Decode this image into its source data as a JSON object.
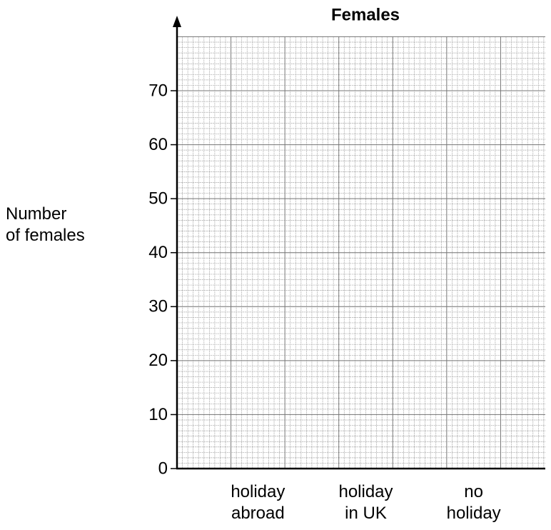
{
  "chart_data": {
    "type": "bar",
    "title": "Females",
    "y_label": "Number\nof females",
    "categories": [
      "holiday\nabroad",
      "holiday\nin UK",
      "no\nholiday"
    ],
    "ylim": [
      0,
      80
    ],
    "yticks": [
      0,
      10,
      20,
      30,
      40,
      50,
      60,
      70
    ],
    "grid": true,
    "minor_grid_step": 1
  }
}
